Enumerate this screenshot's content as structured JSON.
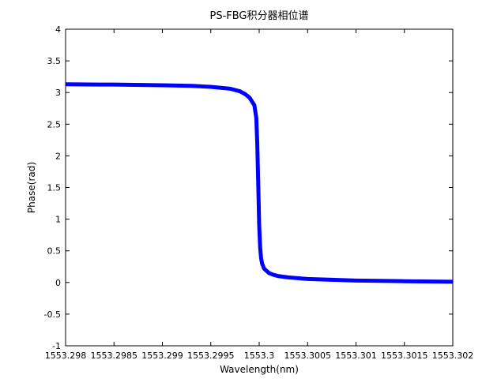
{
  "chart_data": {
    "type": "line",
    "title": "PS-FBG积分器相位谱",
    "xlabel": "Wavelength(nm)",
    "ylabel": "Phase(rad)",
    "xlim": [
      1553.298,
      1553.302
    ],
    "ylim": [
      -1,
      4
    ],
    "xticks": [
      "1553.298",
      "1553.2985",
      "1553.299",
      "1553.2995",
      "1553.3",
      "1553.3005",
      "1553.301",
      "1553.3015",
      "1553.302"
    ],
    "yticks": [
      "-1",
      "-0.5",
      "0",
      "0.5",
      "1",
      "1.5",
      "2",
      "2.5",
      "3",
      "3.5",
      "4"
    ],
    "grid": false,
    "series": [
      {
        "color": "#0000ff",
        "x": [
          1553.298,
          1553.2985,
          1553.299,
          1553.2993,
          1553.2995,
          1553.2997,
          1553.2998,
          1553.29985,
          1553.2999,
          1553.29995,
          1553.29997,
          1553.29998,
          1553.29999,
          1553.3,
          1553.30001,
          1553.30002,
          1553.30003,
          1553.30005,
          1553.3001,
          1553.30015,
          1553.3002,
          1553.3003,
          1553.3005,
          1553.301,
          1553.3015,
          1553.302
        ],
        "y": [
          3.13,
          3.125,
          3.115,
          3.105,
          3.09,
          3.06,
          3.02,
          2.98,
          2.92,
          2.8,
          2.6,
          2.2,
          1.57,
          0.9,
          0.55,
          0.38,
          0.3,
          0.22,
          0.15,
          0.12,
          0.1,
          0.08,
          0.055,
          0.03,
          0.02,
          0.012
        ]
      }
    ]
  }
}
